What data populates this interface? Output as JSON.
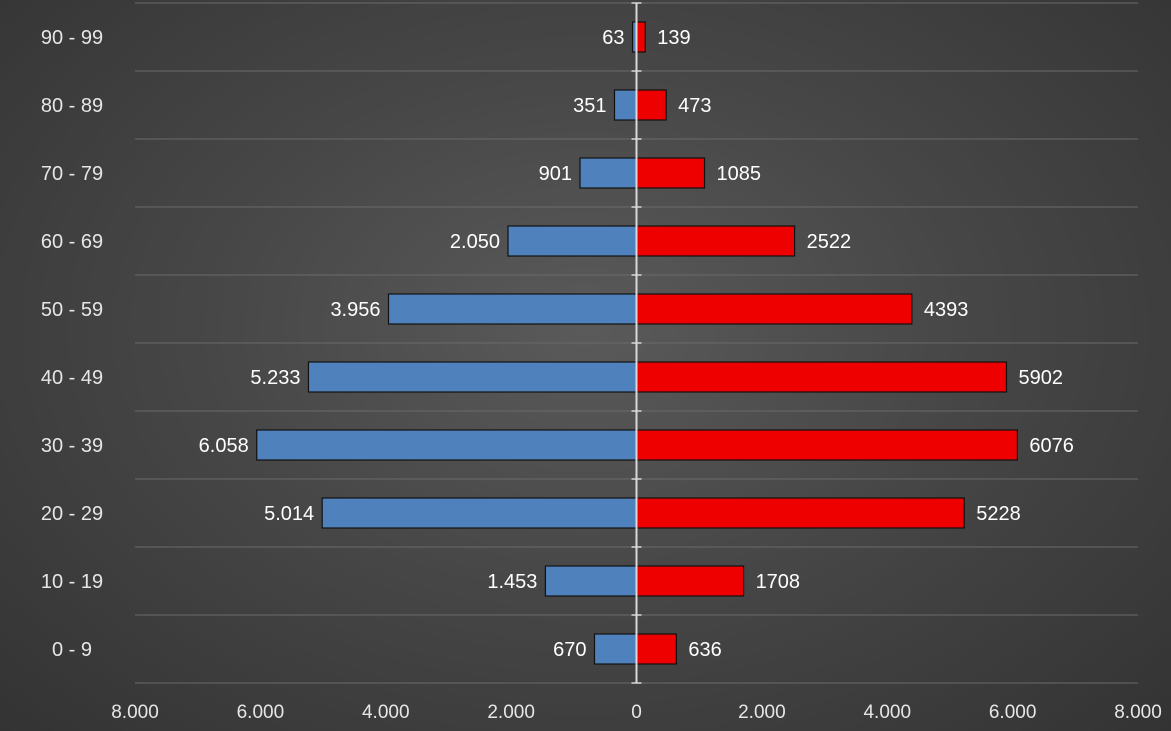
{
  "chart_data": {
    "type": "bar",
    "orientation": "horizontal-diverging",
    "categories": [
      "0 - 9",
      "10 - 19",
      "20 - 29",
      "30 - 39",
      "40 - 49",
      "50 - 59",
      "60 - 69",
      "70 - 79",
      "80 - 89",
      "90 - 99"
    ],
    "series": [
      {
        "side": "left",
        "color": "#4f81bd",
        "values": [
          670,
          1453,
          5014,
          6058,
          5233,
          3956,
          2050,
          901,
          351,
          63
        ],
        "labels": [
          "670",
          "1.453",
          "5.014",
          "6.058",
          "5.233",
          "3.956",
          "2.050",
          "901",
          "351",
          "63"
        ]
      },
      {
        "side": "right",
        "color": "#ee0000",
        "values": [
          636,
          1708,
          5228,
          6076,
          5902,
          4393,
          2522,
          1085,
          473,
          139
        ],
        "labels": [
          "636",
          "1708",
          "5228",
          "6076",
          "5902",
          "4393",
          "2522",
          "1085",
          "473",
          "139"
        ]
      }
    ],
    "xlim": [
      -8000,
      8000
    ],
    "x_ticks": [
      -8000,
      -6000,
      -4000,
      -2000,
      0,
      2000,
      4000,
      6000,
      8000
    ],
    "x_tick_labels": [
      "8.000",
      "6.000",
      "4.000",
      "2.000",
      "0",
      "2.000",
      "4.000",
      "6.000",
      "8.000"
    ],
    "grid": true,
    "title": "",
    "xlabel": "",
    "ylabel": ""
  }
}
